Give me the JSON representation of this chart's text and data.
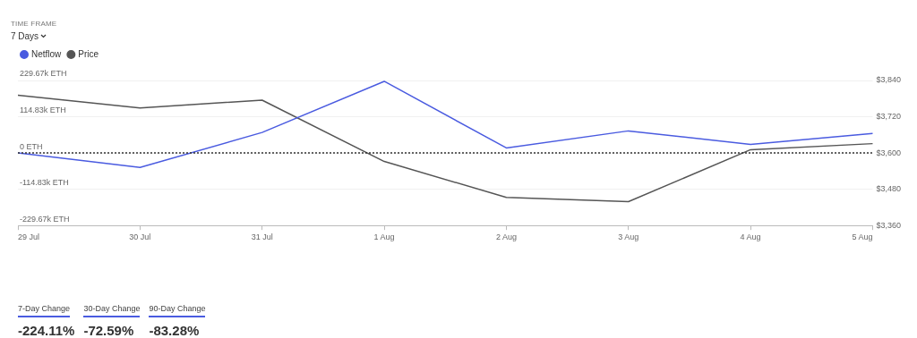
{
  "chart_data": {
    "type": "line",
    "categories": [
      "29 Jul",
      "30 Jul",
      "31 Jul",
      "1 Aug",
      "2 Aug",
      "3 Aug",
      "4 Aug",
      "5 Aug"
    ],
    "series": [
      {
        "name": "Netflow",
        "color": "#4a5be0",
        "values": [
          0,
          -46,
          65,
          227,
          16,
          70,
          27,
          62
        ]
      },
      {
        "name": "Price",
        "color": "#555555",
        "axis": "y2",
        "values": [
          3791,
          3749,
          3775,
          3572,
          3453,
          3439,
          3611,
          3631
        ]
      }
    ],
    "ylim": [
      -229.67,
      229.67
    ],
    "yticks": [
      {
        "value": -229.67,
        "label": "-229.67k ETH"
      },
      {
        "value": -114.83,
        "label": "-114.83k ETH"
      },
      {
        "value": 0,
        "label": "0 ETH"
      },
      {
        "value": 114.83,
        "label": "114.83k ETH"
      },
      {
        "value": 229.67,
        "label": "229.67k ETH"
      }
    ],
    "y2lim": [
      3360,
      3840
    ],
    "y2ticks": [
      {
        "value": 3360,
        "label": "$3,360"
      },
      {
        "value": 3480,
        "label": "$3,480"
      },
      {
        "value": 3600,
        "label": "$3,600"
      },
      {
        "value": 3720,
        "label": "$3,720"
      },
      {
        "value": 3840,
        "label": "$3,840"
      }
    ],
    "ref_lines": [
      {
        "axis": "y",
        "value": 0,
        "color": "#333333",
        "line_style": "dotted"
      }
    ],
    "grid": "y",
    "legend": "top left",
    "marker": "none",
    "line_style": "solid",
    "annotations": [
      "TIME FRAME",
      "7 Days",
      "7-Day Change",
      "-224.11%",
      "30-Day Change",
      "-72.59%",
      "90-Day Change",
      "-83.28%"
    ]
  }
}
